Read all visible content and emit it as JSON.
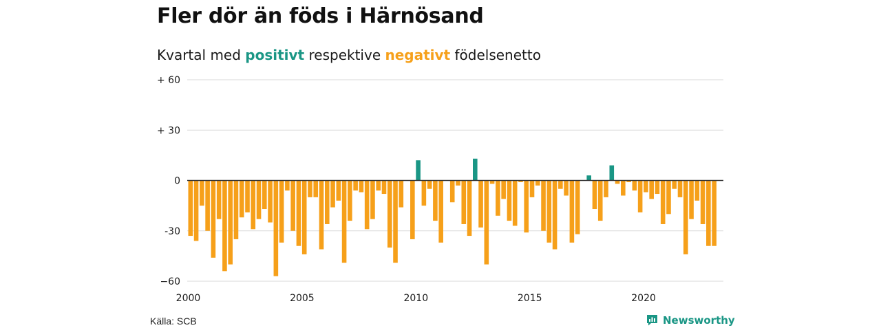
{
  "title": "Fler dör än föds i Härnösand",
  "subtitle": {
    "prefix": "Kvartal med",
    "positive": "positivt",
    "middle": "respektive",
    "negative": "negativt",
    "suffix": "födelsenetto"
  },
  "source": "Källa: SCB",
  "brand": "Newsworthy",
  "colors": {
    "positive": "#1a9685",
    "negative": "#f6a01a",
    "grid": "#d9d9d9",
    "zero_line": "#333333",
    "text": "#1a1a1a"
  },
  "chart_data": {
    "type": "bar",
    "x_start": 2000,
    "quarters_per_year": 4,
    "ylim": [
      -60,
      60
    ],
    "yticks": [
      {
        "value": 60,
        "label": "+ 60"
      },
      {
        "value": 30,
        "label": "+ 30"
      },
      {
        "value": 0,
        "label": "0"
      },
      {
        "value": -30,
        "label": "-30"
      },
      {
        "value": -60,
        "label": "−60"
      }
    ],
    "xticks": [
      {
        "value": 2000,
        "label": "2000"
      },
      {
        "value": 2005,
        "label": "2005"
      },
      {
        "value": 2010,
        "label": "2010"
      },
      {
        "value": 2015,
        "label": "2015"
      },
      {
        "value": 2020,
        "label": "2020"
      }
    ],
    "values": [
      -33,
      -36,
      -15,
      -30,
      -46,
      -23,
      -54,
      -50,
      -35,
      -22,
      -19,
      -29,
      -23,
      -17,
      -25,
      -57,
      -37,
      -6,
      -30,
      -39,
      -44,
      -10,
      -10,
      -41,
      -26,
      -16,
      -12,
      -49,
      -24,
      -6,
      -7,
      -29,
      -23,
      -6,
      -8,
      -40,
      -49,
      -16,
      0,
      -35,
      12,
      -15,
      -5,
      -24,
      -37,
      0,
      -13,
      -3,
      -26,
      -33,
      13,
      -28,
      -50,
      -2,
      -21,
      -11,
      -24,
      -27,
      -1,
      -31,
      -10,
      -3,
      -30,
      -37,
      -41,
      -5,
      -9,
      -37,
      -32,
      0,
      3,
      -17,
      -24,
      -10,
      9,
      -2,
      -9,
      -1,
      -6,
      -19,
      -7,
      -11,
      -8,
      -26,
      -20,
      -5,
      -10,
      -44,
      -23,
      -12,
      -26,
      -39,
      -39
    ]
  }
}
